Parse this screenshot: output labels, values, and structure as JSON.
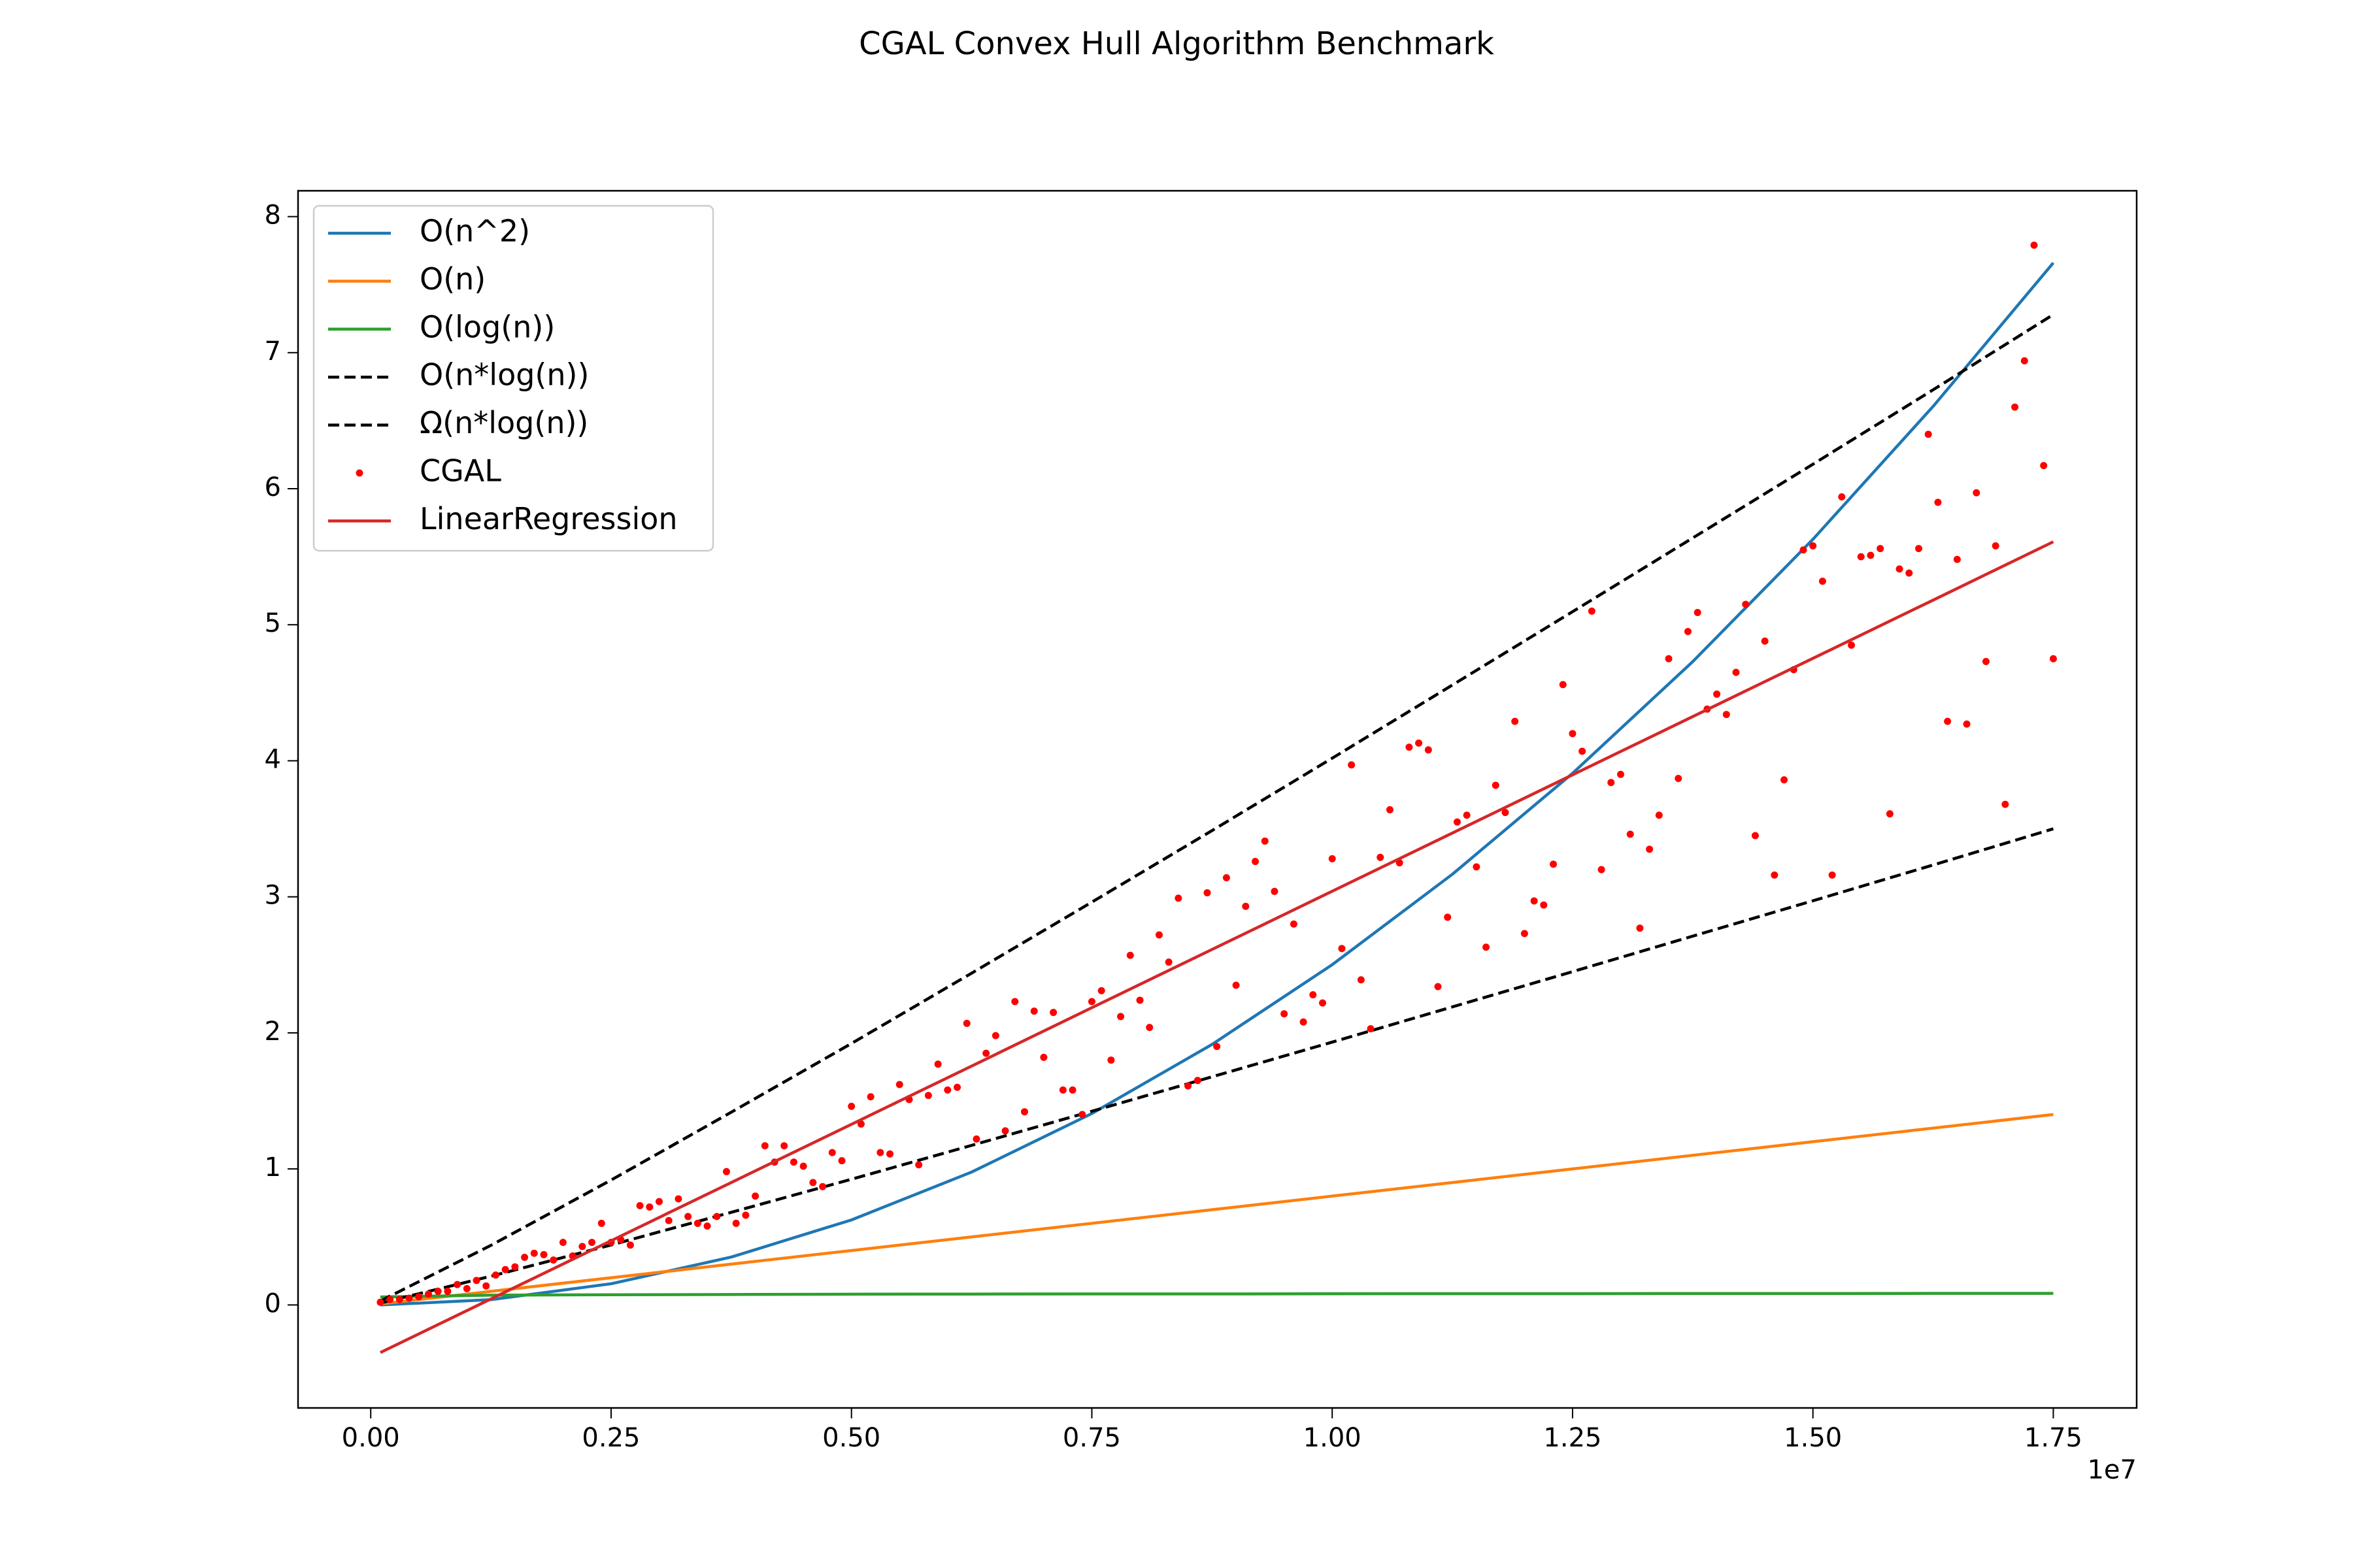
{
  "chart_data": {
    "type": "line",
    "title": "CGAL Convex Hull Algorithm Benchmark",
    "x_offset_label": "1e7",
    "x": [
      100000,
      1250000,
      2500000,
      3750000,
      5000000,
      6250000,
      7500000,
      8750000,
      10000000,
      11250000,
      12500000,
      13750000,
      15000000,
      16250000,
      17500000
    ],
    "series": [
      {
        "name": "O(n^2)",
        "color": "#1f77b4",
        "style": "solid",
        "values": [
          0.0,
          0.039,
          0.156,
          0.352,
          0.625,
          0.977,
          1.407,
          1.915,
          2.501,
          3.166,
          3.908,
          4.729,
          5.628,
          6.605,
          7.66
        ]
      },
      {
        "name": "O(n)",
        "color": "#ff7f0e",
        "style": "solid",
        "values": [
          0.008,
          0.1,
          0.2,
          0.3,
          0.4,
          0.5,
          0.6,
          0.7,
          0.8,
          0.9,
          1.0,
          1.1,
          1.2,
          1.3,
          1.4
        ]
      },
      {
        "name": "O(log(n))",
        "color": "#2ca02c",
        "style": "solid",
        "values": [
          0.059,
          0.072,
          0.075,
          0.077,
          0.079,
          0.08,
          0.081,
          0.081,
          0.082,
          0.083,
          0.083,
          0.084,
          0.084,
          0.085,
          0.085
        ]
      },
      {
        "name": "O(n*log(n))",
        "color": "#000000",
        "style": "dashed",
        "values": [
          0.029,
          0.438,
          0.918,
          1.417,
          1.922,
          2.439,
          2.961,
          3.487,
          4.019,
          4.557,
          5.096,
          5.638,
          6.18,
          6.727,
          7.28
        ]
      },
      {
        "name": "Ω(n*log(n))",
        "color": "#000000",
        "style": "dashed",
        "values": [
          0.014,
          0.211,
          0.441,
          0.681,
          0.924,
          1.173,
          1.424,
          1.677,
          1.932,
          2.191,
          2.45,
          2.711,
          2.971,
          3.234,
          3.5
        ]
      },
      {
        "name": "CGAL",
        "color": "#ff0000",
        "style": "markers",
        "x": [
          100000,
          200000,
          300000,
          400000,
          500000,
          600000,
          700000,
          800000,
          900000,
          1000000,
          1100000,
          1200000,
          1300000,
          1400000,
          1500000,
          1600000,
          1700000,
          1800000,
          1900000,
          2000000,
          2100000,
          2200000,
          2300000,
          2400000,
          2500000,
          2600000,
          2700000,
          2800000,
          2900000,
          3000000,
          3100000,
          3200000,
          3300000,
          3400000,
          3500000,
          3600000,
          3700000,
          3800000,
          3900000,
          4000000,
          4100000,
          4200000,
          4300000,
          4400000,
          4500000,
          4600000,
          4700000,
          4800000,
          4900000,
          5000000,
          5100000,
          5200000,
          5300000,
          5400000,
          5500000,
          5600000,
          5700000,
          5800000,
          5900000,
          6000000,
          6100000,
          6200000,
          6300000,
          6400000,
          6500000,
          6600000,
          6700000,
          6800000,
          6900000,
          7000000,
          7100000,
          7200000,
          7300000,
          7400000,
          7500000,
          7600000,
          7700000,
          7800000,
          7900000,
          8000000,
          8100000,
          8200000,
          8300000,
          8400000,
          8500000,
          8600000,
          8700000,
          8800000,
          8900000,
          9000000,
          9100000,
          9200000,
          9300000,
          9400000,
          9500000,
          9600000,
          9700000,
          9800000,
          9900000,
          10000000,
          10100000,
          10200000,
          10300000,
          10400000,
          10500000,
          10600000,
          10700000,
          10800000,
          10900000,
          11000000,
          11100000,
          11200000,
          11300000,
          11400000,
          11500000,
          11600000,
          11700000,
          11800000,
          11900000,
          12000000,
          12100000,
          12200000,
          12300000,
          12400000,
          12500000,
          12600000,
          12700000,
          12800000,
          12900000,
          13000000,
          13100000,
          13200000,
          13300000,
          13400000,
          13500000,
          13600000,
          13700000,
          13800000,
          13900000,
          14000000,
          14100000,
          14200000,
          14300000,
          14400000,
          14500000,
          14600000,
          14700000,
          14800000,
          14900000,
          15000000,
          15100000,
          15200000,
          15300000,
          15400000,
          15500000,
          15600000,
          15700000,
          15800000,
          15900000,
          16000000,
          16100000,
          16200000,
          16300000,
          16400000,
          16500000,
          16600000,
          16700000,
          16800000,
          16900000,
          17000000,
          17100000,
          17200000,
          17300000,
          17400000,
          17500000
        ],
        "values": [
          0.02,
          0.04,
          0.04,
          0.05,
          0.06,
          0.08,
          0.1,
          0.1,
          0.15,
          0.12,
          0.18,
          0.14,
          0.22,
          0.26,
          0.28,
          0.35,
          0.38,
          0.37,
          0.33,
          0.46,
          0.36,
          0.43,
          0.46,
          0.6,
          0.46,
          0.48,
          0.44,
          0.73,
          0.72,
          0.76,
          0.62,
          0.78,
          0.65,
          0.6,
          0.58,
          0.65,
          0.98,
          0.6,
          0.66,
          0.8,
          1.17,
          1.05,
          1.17,
          1.05,
          1.02,
          0.9,
          0.87,
          1.12,
          1.06,
          1.46,
          1.33,
          1.53,
          1.12,
          1.11,
          1.62,
          1.51,
          1.03,
          1.54,
          1.77,
          1.58,
          1.6,
          2.07,
          1.22,
          1.85,
          1.98,
          1.28,
          2.23,
          1.42,
          2.16,
          1.82,
          2.15,
          1.58,
          1.58,
          1.4,
          2.23,
          2.31,
          1.8,
          2.12,
          2.57,
          2.24,
          2.04,
          2.72,
          2.52,
          2.99,
          1.61,
          1.65,
          3.03,
          1.9,
          3.14,
          2.35,
          2.93,
          3.26,
          3.41,
          3.04,
          2.14,
          2.8,
          2.08,
          2.28,
          2.22,
          3.28,
          2.62,
          3.97,
          2.39,
          2.03,
          3.29,
          3.64,
          3.25,
          4.1,
          4.13,
          4.08,
          2.34,
          2.85,
          3.55,
          3.6,
          3.22,
          2.63,
          3.82,
          3.62,
          4.29,
          2.73,
          2.97,
          2.94,
          3.24,
          4.56,
          4.2,
          4.07,
          5.1,
          3.2,
          3.84,
          3.9,
          3.46,
          2.77,
          3.35,
          3.6,
          4.75,
          3.87,
          4.95,
          5.09,
          4.38,
          4.49,
          4.34,
          4.65,
          5.15,
          3.45,
          4.88,
          3.16,
          3.86,
          4.67,
          5.55,
          5.58,
          5.32,
          3.16,
          5.94,
          4.85,
          5.5,
          5.51,
          5.56,
          3.61,
          5.41,
          5.38,
          5.56,
          6.4,
          5.9,
          4.29,
          5.48,
          4.27,
          5.97,
          4.73,
          5.58,
          3.68,
          6.6,
          6.94,
          7.79,
          6.17,
          4.75
        ]
      },
      {
        "name": "LinearRegression",
        "color": "#d62728",
        "style": "solid",
        "values": [
          -0.35,
          0.044,
          0.472,
          0.9,
          1.328,
          1.756,
          2.185,
          2.613,
          3.041,
          3.469,
          3.897,
          4.325,
          4.753,
          5.181,
          5.61
        ]
      }
    ],
    "xlim": [
      -756000,
      18367000
    ],
    "ylim": [
      -0.757,
      8.19
    ],
    "xticks": [
      {
        "value": 0,
        "label": "0.00"
      },
      {
        "value": 2500000,
        "label": "0.25"
      },
      {
        "value": 5000000,
        "label": "0.50"
      },
      {
        "value": 7500000,
        "label": "0.75"
      },
      {
        "value": 10000000,
        "label": "1.00"
      },
      {
        "value": 12500000,
        "label": "1.25"
      },
      {
        "value": 15000000,
        "label": "1.50"
      },
      {
        "value": 17500000,
        "label": "1.75"
      }
    ],
    "yticks": [
      0,
      1,
      2,
      3,
      4,
      5,
      6,
      7,
      8
    ],
    "grid": false,
    "legend": "upper left"
  }
}
